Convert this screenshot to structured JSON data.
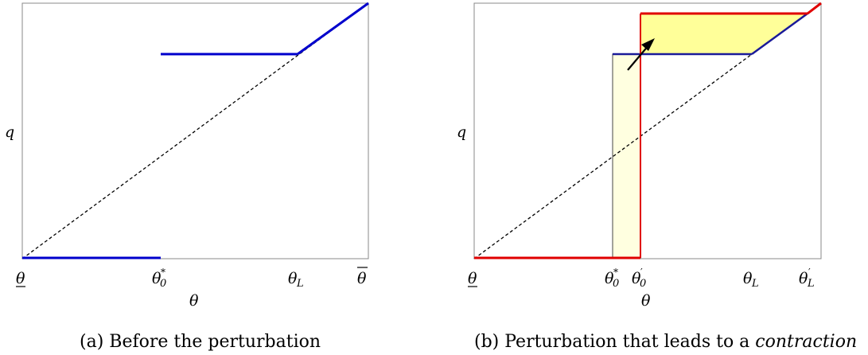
{
  "panel_a": {
    "y_label": "q",
    "x_label": "θ",
    "tick_lower": "θ",
    "tick_theta0_base": "θ",
    "tick_theta0_sub": "0",
    "tick_theta0_sup": "*",
    "tick_thetaL_base": "θ",
    "tick_thetaL_sub": "L",
    "tick_upper": "θ",
    "caption": "(a) Before the perturbation",
    "colors": {
      "allocation": "#0000cc",
      "diagonal": "#000000"
    }
  },
  "panel_b": {
    "y_label": "q",
    "x_label": "θ",
    "tick_lower": "θ",
    "tick_theta0star_base": "θ",
    "tick_theta0star_sub": "0",
    "tick_theta0star_sup": "*",
    "tick_theta0prime_base": "θ",
    "tick_theta0prime_sub": "0",
    "tick_theta0prime_sup": "′",
    "tick_thetaL_base": "θ",
    "tick_thetaL_sub": "L",
    "tick_thetaLprime_base": "θ",
    "tick_thetaLprime_sub": "L",
    "tick_thetaLprime_sup": "′",
    "caption_prefix": "(b) Perturbation that leads to a ",
    "caption_emphasis": "contraction",
    "colors": {
      "original": "#1a1a99",
      "perturbed": "#e00000",
      "shade_strong": "#ffff99",
      "shade_light": "#ffffe0",
      "arrow": "#000000"
    }
  }
}
